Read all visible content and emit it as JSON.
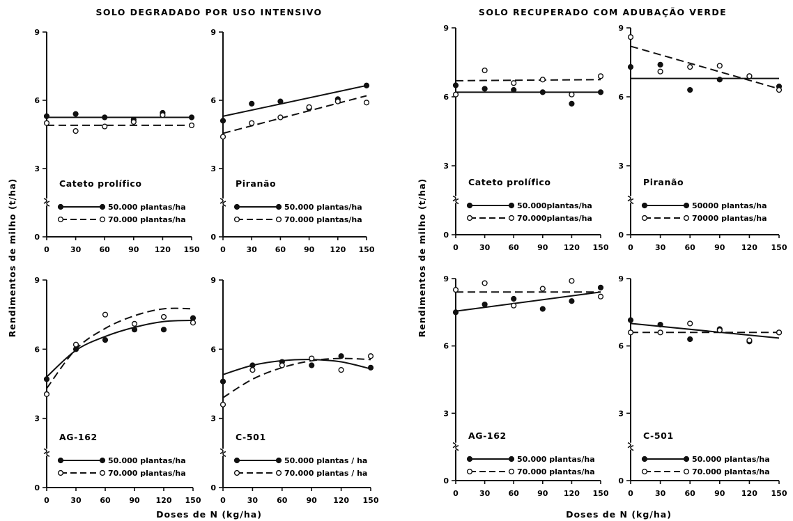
{
  "titles": {
    "left": "SOLO DEGRADADO POR USO INTENSIVO",
    "right": "SOLO RECUPERADO COM ADUBAÇÃO VERDE"
  },
  "labels": {
    "ylabel_left": "Rendimentos de milho (t/ha)",
    "ylabel_right": "Rendimentos de milho (t/ha)",
    "xlabel_left": "Doses de N (kg/ha)",
    "xlabel_right": "Doses de N (kg/ha)"
  },
  "chart_data": [
    {
      "type": "scatter",
      "soil": "SOLO DEGRADADO POR USO INTENSIVO",
      "cultivar": "Cateto prolífico",
      "xlabel": "Doses de N (kg/ha)",
      "ylabel": "Rendimentos de milho (t/ha)",
      "xlim": [
        0,
        150
      ],
      "ylim": [
        0,
        9
      ],
      "xticks": [
        0,
        30,
        60,
        90,
        120,
        150
      ],
      "yticks": [
        0,
        3,
        6,
        9
      ],
      "legend": [
        "50.000 plantas/ha",
        "70.000 plantas/ha"
      ],
      "series": [
        {
          "name": "50.000 plantas/ha",
          "marker": "filled",
          "line": "solid",
          "points": [
            [
              0,
              5.3
            ],
            [
              30,
              5.4
            ],
            [
              60,
              5.25
            ],
            [
              90,
              5.15
            ],
            [
              120,
              5.45
            ],
            [
              150,
              5.25
            ]
          ],
          "fit": [
            [
              0,
              5.25
            ],
            [
              150,
              5.25
            ]
          ]
        },
        {
          "name": "70.000 plantas/ha",
          "marker": "open",
          "line": "dashed",
          "points": [
            [
              0,
              5.0
            ],
            [
              30,
              4.65
            ],
            [
              60,
              4.85
            ],
            [
              90,
              5.05
            ],
            [
              120,
              5.35
            ],
            [
              150,
              4.9
            ]
          ],
          "fit": [
            [
              0,
              4.9
            ],
            [
              150,
              4.9
            ]
          ]
        }
      ]
    },
    {
      "type": "scatter",
      "soil": "SOLO DEGRADADO POR USO INTENSIVO",
      "cultivar": "Piranão",
      "xlabel": "Doses de N (kg/ha)",
      "ylabel": "Rendimentos de milho (t/ha)",
      "xlim": [
        0,
        150
      ],
      "ylim": [
        0,
        9
      ],
      "xticks": [
        0,
        30,
        60,
        90,
        120,
        150
      ],
      "yticks": [
        0,
        3,
        6,
        9
      ],
      "legend": [
        "50.000 plantas/ha",
        "70.000 plantas/ha"
      ],
      "series": [
        {
          "name": "50.000 plantas/ha",
          "marker": "filled",
          "line": "solid",
          "points": [
            [
              0,
              5.1
            ],
            [
              30,
              5.85
            ],
            [
              60,
              5.95
            ],
            [
              90,
              5.65
            ],
            [
              120,
              6.05
            ],
            [
              150,
              6.65
            ]
          ],
          "fit": [
            [
              0,
              5.3
            ],
            [
              150,
              6.65
            ]
          ]
        },
        {
          "name": "70.000 plantas/ha",
          "marker": "open",
          "line": "dashed",
          "points": [
            [
              0,
              4.4
            ],
            [
              30,
              5.0
            ],
            [
              60,
              5.25
            ],
            [
              90,
              5.7
            ],
            [
              120,
              5.95
            ],
            [
              150,
              5.9
            ]
          ],
          "fit": [
            [
              0,
              4.55
            ],
            [
              150,
              6.2
            ]
          ]
        }
      ]
    },
    {
      "type": "scatter",
      "soil": "SOLO DEGRADADO POR USO INTENSIVO",
      "cultivar": "AG-162",
      "xlabel": "Doses de N (kg/ha)",
      "ylabel": "Rendimentos de milho (t/ha)",
      "xlim": [
        0,
        150
      ],
      "ylim": [
        0,
        9
      ],
      "xticks": [
        0,
        30,
        60,
        90,
        120,
        150
      ],
      "yticks": [
        0,
        3,
        6,
        9
      ],
      "legend": [
        "50.000 plantas/ha",
        "70.000 plantas/ha"
      ],
      "series": [
        {
          "name": "50.000 plantas/ha",
          "marker": "filled",
          "line": "solid",
          "points": [
            [
              0,
              4.7
            ],
            [
              30,
              6.0
            ],
            [
              60,
              6.4
            ],
            [
              90,
              6.85
            ],
            [
              120,
              6.85
            ],
            [
              150,
              7.35
            ]
          ],
          "fit": [
            [
              0,
              4.8
            ],
            [
              30,
              5.95
            ],
            [
              60,
              6.55
            ],
            [
              90,
              6.95
            ],
            [
              120,
              7.2
            ],
            [
              150,
              7.25
            ]
          ]
        },
        {
          "name": "70.000 plantas/ha",
          "marker": "open",
          "line": "dashed",
          "points": [
            [
              0,
              4.05
            ],
            [
              30,
              6.2
            ],
            [
              60,
              7.5
            ],
            [
              90,
              7.1
            ],
            [
              120,
              7.4
            ],
            [
              150,
              7.15
            ]
          ],
          "fit": [
            [
              0,
              4.3
            ],
            [
              30,
              6.0
            ],
            [
              60,
              6.9
            ],
            [
              90,
              7.45
            ],
            [
              120,
              7.75
            ],
            [
              150,
              7.75
            ]
          ]
        }
      ]
    },
    {
      "type": "scatter",
      "soil": "SOLO DEGRADADO POR USO INTENSIVO",
      "cultivar": "C-501",
      "xlabel": "Doses de N (kg/ha)",
      "ylabel": "Rendimentos de milho (t/ha)",
      "xlim": [
        0,
        150
      ],
      "ylim": [
        0,
        9
      ],
      "xticks": [
        0,
        30,
        60,
        90,
        120,
        150
      ],
      "yticks": [
        0,
        3,
        6,
        9
      ],
      "legend": [
        "50.000 plantas / ha",
        "70.000 plantas / ha"
      ],
      "series": [
        {
          "name": "50.000 plantas / ha",
          "marker": "filled",
          "line": "solid",
          "points": [
            [
              0,
              4.6
            ],
            [
              30,
              5.3
            ],
            [
              60,
              5.45
            ],
            [
              90,
              5.3
            ],
            [
              120,
              5.7
            ],
            [
              150,
              5.2
            ]
          ],
          "fit": [
            [
              0,
              4.9
            ],
            [
              30,
              5.3
            ],
            [
              60,
              5.5
            ],
            [
              90,
              5.55
            ],
            [
              120,
              5.45
            ],
            [
              150,
              5.15
            ]
          ]
        },
        {
          "name": "70.000 plantas / ha",
          "marker": "open",
          "line": "dashed",
          "points": [
            [
              0,
              3.6
            ],
            [
              30,
              5.1
            ],
            [
              60,
              5.3
            ],
            [
              90,
              5.6
            ],
            [
              120,
              5.1
            ],
            [
              150,
              5.7
            ]
          ],
          "fit": [
            [
              0,
              3.9
            ],
            [
              30,
              4.7
            ],
            [
              60,
              5.2
            ],
            [
              90,
              5.5
            ],
            [
              120,
              5.6
            ],
            [
              150,
              5.55
            ]
          ]
        }
      ]
    },
    {
      "type": "scatter",
      "soil": "SOLO RECUPERADO COM ADUBAÇÃO VERDE",
      "cultivar": "Cateto prolífico",
      "xlabel": "Doses de N (kg/ha)",
      "ylabel": "Rendimentos de milho (t/ha)",
      "xlim": [
        0,
        150
      ],
      "ylim": [
        0,
        9
      ],
      "xticks": [
        0,
        30,
        60,
        90,
        120,
        150
      ],
      "yticks": [
        0,
        3,
        6,
        9
      ],
      "legend": [
        "50.000plantas/ha",
        "70.000plantas/ha"
      ],
      "series": [
        {
          "name": "50.000plantas/ha",
          "marker": "filled",
          "line": "solid",
          "points": [
            [
              0,
              6.5
            ],
            [
              30,
              6.35
            ],
            [
              60,
              6.3
            ],
            [
              90,
              6.2
            ],
            [
              120,
              5.7
            ],
            [
              150,
              6.2
            ]
          ],
          "fit": [
            [
              0,
              6.2
            ],
            [
              150,
              6.2
            ]
          ]
        },
        {
          "name": "70.000plantas/ha",
          "marker": "open",
          "line": "dashed",
          "points": [
            [
              0,
              6.1
            ],
            [
              30,
              7.15
            ],
            [
              60,
              6.6
            ],
            [
              90,
              6.75
            ],
            [
              120,
              6.1
            ],
            [
              150,
              6.9
            ]
          ],
          "fit": [
            [
              0,
              6.7
            ],
            [
              150,
              6.75
            ]
          ]
        }
      ]
    },
    {
      "type": "scatter",
      "soil": "SOLO RECUPERADO COM ADUBAÇÃO VERDE",
      "cultivar": "Piranão",
      "xlabel": "Doses de N (kg/ha)",
      "ylabel": "Rendimentos de milho (t/ha)",
      "xlim": [
        0,
        150
      ],
      "ylim": [
        0,
        9
      ],
      "xticks": [
        0,
        30,
        60,
        90,
        120,
        150
      ],
      "yticks": [
        0,
        3,
        6,
        9
      ],
      "legend": [
        "50000 plantas/ha",
        "70000 plantas/ha"
      ],
      "series": [
        {
          "name": "50000 plantas/ha",
          "marker": "filled",
          "line": "solid",
          "points": [
            [
              0,
              7.3
            ],
            [
              30,
              7.4
            ],
            [
              60,
              6.3
            ],
            [
              90,
              6.75
            ],
            [
              120,
              6.9
            ],
            [
              150,
              6.45
            ]
          ],
          "fit": [
            [
              0,
              6.8
            ],
            [
              150,
              6.8
            ]
          ]
        },
        {
          "name": "70000 plantas/ha",
          "marker": "open",
          "line": "dashed",
          "points": [
            [
              0,
              8.6
            ],
            [
              30,
              7.1
            ],
            [
              60,
              7.3
            ],
            [
              90,
              7.35
            ],
            [
              120,
              6.9
            ],
            [
              150,
              6.3
            ]
          ],
          "fit": [
            [
              0,
              8.2
            ],
            [
              150,
              6.35
            ]
          ]
        }
      ]
    },
    {
      "type": "scatter",
      "soil": "SOLO RECUPERADO COM ADUBAÇÃO VERDE",
      "cultivar": "AG-162",
      "xlabel": "Doses de N (kg/ha)",
      "ylabel": "Rendimentos de milho (t/ha)",
      "xlim": [
        0,
        150
      ],
      "ylim": [
        0,
        9
      ],
      "xticks": [
        0,
        30,
        60,
        90,
        120,
        150
      ],
      "yticks": [
        0,
        3,
        6,
        9
      ],
      "legend": [
        "50.000 plantas/ha",
        "70.000 plantas/ha"
      ],
      "series": [
        {
          "name": "50.000 plantas/ha",
          "marker": "filled",
          "line": "solid",
          "points": [
            [
              0,
              7.5
            ],
            [
              30,
              7.85
            ],
            [
              60,
              8.1
            ],
            [
              90,
              7.65
            ],
            [
              120,
              8.0
            ],
            [
              150,
              8.6
            ]
          ],
          "fit": [
            [
              0,
              7.55
            ],
            [
              150,
              8.4
            ]
          ]
        },
        {
          "name": "70.000 plantas/ha",
          "marker": "open",
          "line": "dashed",
          "points": [
            [
              0,
              8.5
            ],
            [
              30,
              8.8
            ],
            [
              60,
              7.8
            ],
            [
              90,
              8.55
            ],
            [
              120,
              8.9
            ],
            [
              150,
              8.2
            ]
          ],
          "fit": [
            [
              0,
              8.4
            ],
            [
              150,
              8.4
            ]
          ]
        }
      ]
    },
    {
      "type": "scatter",
      "soil": "SOLO RECUPERADO COM ADUBAÇÃO VERDE",
      "cultivar": "C-501",
      "xlabel": "Doses de N (kg/ha)",
      "ylabel": "Rendimentos de milho (t/ha)",
      "xlim": [
        0,
        150
      ],
      "ylim": [
        0,
        9
      ],
      "xticks": [
        0,
        30,
        60,
        90,
        120,
        150
      ],
      "yticks": [
        0,
        3,
        6,
        9
      ],
      "legend": [
        "50.000 plantas/ha",
        "70.000 plantas/ha"
      ],
      "series": [
        {
          "name": "50.000 plantas/ha",
          "marker": "filled",
          "line": "solid",
          "points": [
            [
              0,
              7.15
            ],
            [
              30,
              6.95
            ],
            [
              60,
              6.3
            ],
            [
              90,
              6.75
            ],
            [
              120,
              6.2
            ],
            [
              150,
              6.6
            ]
          ],
          "fit": [
            [
              0,
              7.0
            ],
            [
              150,
              6.35
            ]
          ]
        },
        {
          "name": "70.000 plantas/ha",
          "marker": "open",
          "line": "dashed",
          "points": [
            [
              0,
              6.6
            ],
            [
              30,
              6.6
            ],
            [
              60,
              7.0
            ],
            [
              90,
              6.7
            ],
            [
              120,
              6.25
            ],
            [
              150,
              6.6
            ]
          ],
          "fit": [
            [
              0,
              6.6
            ],
            [
              150,
              6.6
            ]
          ]
        }
      ]
    }
  ]
}
